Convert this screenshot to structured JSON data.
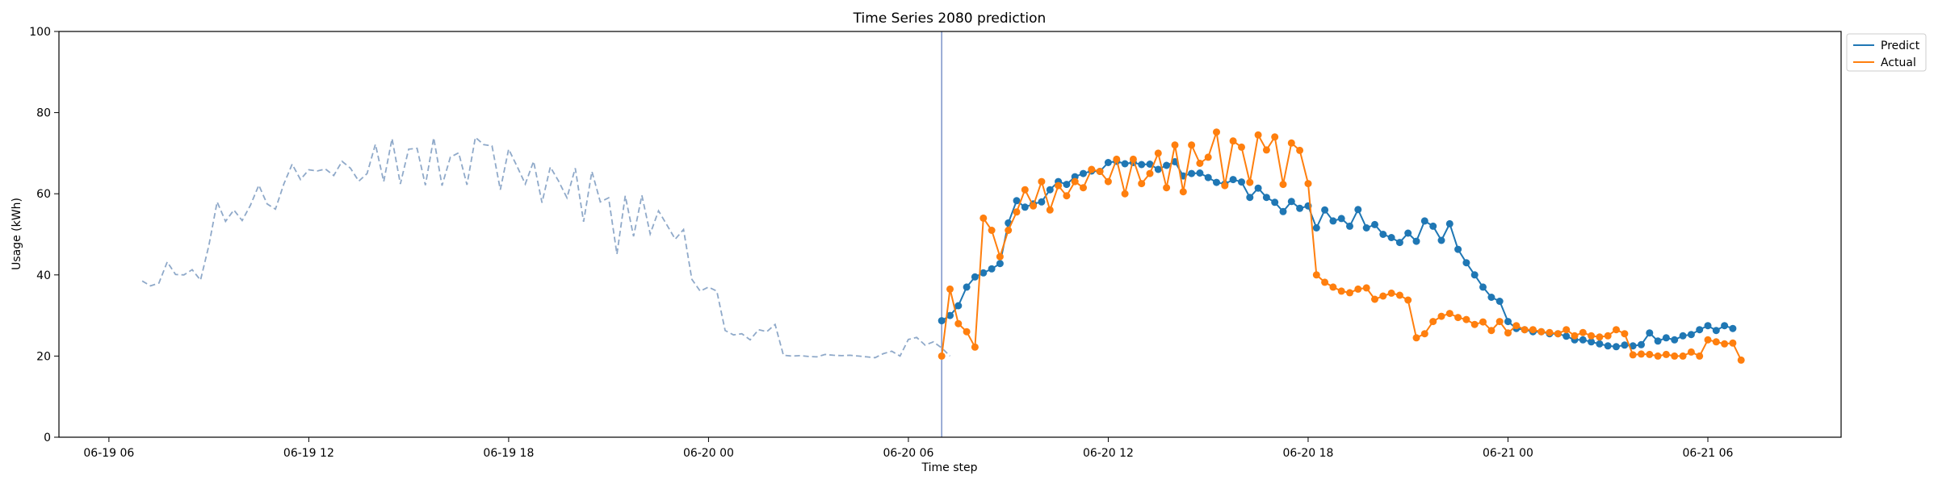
{
  "chart_data": {
    "type": "line",
    "title": "Time Series 2080 prediction",
    "xlabel": "Time step",
    "ylabel": "Usage (kWh)",
    "ylim": [
      0,
      100
    ],
    "yticks": [
      0,
      20,
      40,
      60,
      80,
      100
    ],
    "xlim": [
      "2024-06-19 04:30",
      "2024-06-21 10:00"
    ],
    "xticks": [
      {
        "value": "2024-06-19 06:00",
        "label": "06-19 06"
      },
      {
        "value": "2024-06-19 12:00",
        "label": "06-19 12"
      },
      {
        "value": "2024-06-19 18:00",
        "label": "06-19 18"
      },
      {
        "value": "2024-06-20 00:00",
        "label": "06-20 00"
      },
      {
        "value": "2024-06-20 06:00",
        "label": "06-20 06"
      },
      {
        "value": "2024-06-20 12:00",
        "label": "06-20 12"
      },
      {
        "value": "2024-06-20 18:00",
        "label": "06-20 18"
      },
      {
        "value": "2024-06-21 00:00",
        "label": "06-21 00"
      },
      {
        "value": "2024-06-21 06:00",
        "label": "06-21 06"
      }
    ],
    "grid": false,
    "legend_position": "top-right",
    "vertical_line": {
      "x": "2024-06-20 07:00",
      "color": "#7b93c9"
    },
    "history": {
      "x_start": "2024-06-19 07:00",
      "step_minutes": 15,
      "color": "#8fa9c9",
      "style": "dashed",
      "values": [
        38.5,
        37.3,
        38.0,
        43.2,
        40.1,
        40.0,
        41.3,
        38.7,
        47.2,
        58.0,
        53.2,
        56.0,
        53.4,
        57.2,
        62.1,
        57.5,
        56.2,
        62.4,
        67.3,
        63.5,
        65.9,
        65.6,
        66.1,
        64.5,
        68.0,
        66.3,
        63.1,
        65.0,
        72.2,
        63.0,
        73.6,
        62.4,
        71.0,
        71.2,
        62.1,
        73.8,
        62.0,
        69.0,
        70.1,
        62.2,
        73.9,
        72.1,
        71.8,
        61.0,
        71.0,
        66.8,
        62.4,
        68.0,
        57.8,
        66.6,
        63.1,
        59.0,
        66.3,
        53.1,
        65.5,
        58.0,
        59.0,
        45.1,
        59.5,
        49.5,
        59.6,
        50.1,
        55.8,
        52.3,
        48.8,
        51.2,
        38.9,
        36.0,
        37.0,
        36.0,
        26.3,
        25.2,
        25.5,
        24.0,
        26.5,
        26.0,
        27.8,
        20.2,
        20.0,
        20.1,
        19.9,
        19.8,
        20.4,
        20.2,
        20.1,
        20.2,
        20.0,
        19.8,
        19.6,
        20.6,
        21.2,
        20.0,
        24.1,
        24.6,
        22.7,
        23.5,
        22.0,
        20.0
      ]
    },
    "series": [
      {
        "name": "Predict",
        "color": "#1f77b4",
        "x_start": "2024-06-20 07:00",
        "step_minutes": 15,
        "values": [
          28.7,
          30.0,
          32.4,
          37.0,
          39.5,
          40.5,
          41.5,
          42.8,
          52.8,
          58.3,
          56.7,
          57.5,
          58.0,
          61.0,
          63.0,
          62.3,
          64.2,
          65.0,
          65.6,
          65.5,
          67.7,
          68.0,
          67.4,
          67.7,
          67.2,
          67.3,
          66.0,
          67.0,
          67.9,
          64.4,
          65.0,
          65.1,
          64.0,
          62.8,
          62.4,
          63.5,
          62.9,
          59.1,
          61.4,
          59.1,
          57.9,
          55.6,
          58.1,
          56.4,
          57.0,
          51.6,
          56.0,
          53.3,
          53.9,
          52.0,
          56.1,
          51.6,
          52.4,
          50.0,
          49.2,
          48.0,
          50.3,
          48.3,
          53.3,
          52.0,
          48.5,
          52.6,
          46.3,
          43.0,
          40.0,
          37.0,
          34.5,
          33.5,
          28.5,
          26.8,
          26.5,
          26.0,
          26.0,
          25.5,
          25.5,
          24.9,
          24.0,
          24.0,
          23.5,
          23.0,
          22.5,
          22.3,
          22.7,
          22.5,
          22.8,
          25.7,
          23.7,
          24.5,
          24.0,
          25.0,
          25.3,
          26.5,
          27.5,
          26.3,
          27.5,
          26.8
        ]
      },
      {
        "name": "Actual",
        "color": "#ff7f0e",
        "x_start": "2024-06-20 07:00",
        "step_minutes": 15,
        "values": [
          20.0,
          36.5,
          28.0,
          26.0,
          22.2,
          54.0,
          51.0,
          44.5,
          51.0,
          55.5,
          61.0,
          57.0,
          63.0,
          56.0,
          62.0,
          59.5,
          63.0,
          61.5,
          66.0,
          65.5,
          63.0,
          68.5,
          60.0,
          68.5,
          62.5,
          65.0,
          70.0,
          61.5,
          72.0,
          60.5,
          72.0,
          67.5,
          69.0,
          75.2,
          62.0,
          73.0,
          71.5,
          62.8,
          74.5,
          70.8,
          74.0,
          62.3,
          72.5,
          70.7,
          62.5,
          40.0,
          38.2,
          37.0,
          36.0,
          35.6,
          36.5,
          36.8,
          34.0,
          34.8,
          35.5,
          35.0,
          33.8,
          24.5,
          25.5,
          28.5,
          29.8,
          30.5,
          29.5,
          29.0,
          27.8,
          28.4,
          26.3,
          28.5,
          25.7,
          27.5,
          26.5,
          26.5,
          26.0,
          25.8,
          25.5,
          26.5,
          25.0,
          25.8,
          25.0,
          24.7,
          25.0,
          26.5,
          25.5,
          20.3,
          20.5,
          20.4,
          20.0,
          20.4,
          20.0,
          20.0,
          21.0,
          20.0,
          24.0,
          23.5,
          23.0,
          23.2,
          19.0
        ]
      }
    ]
  }
}
